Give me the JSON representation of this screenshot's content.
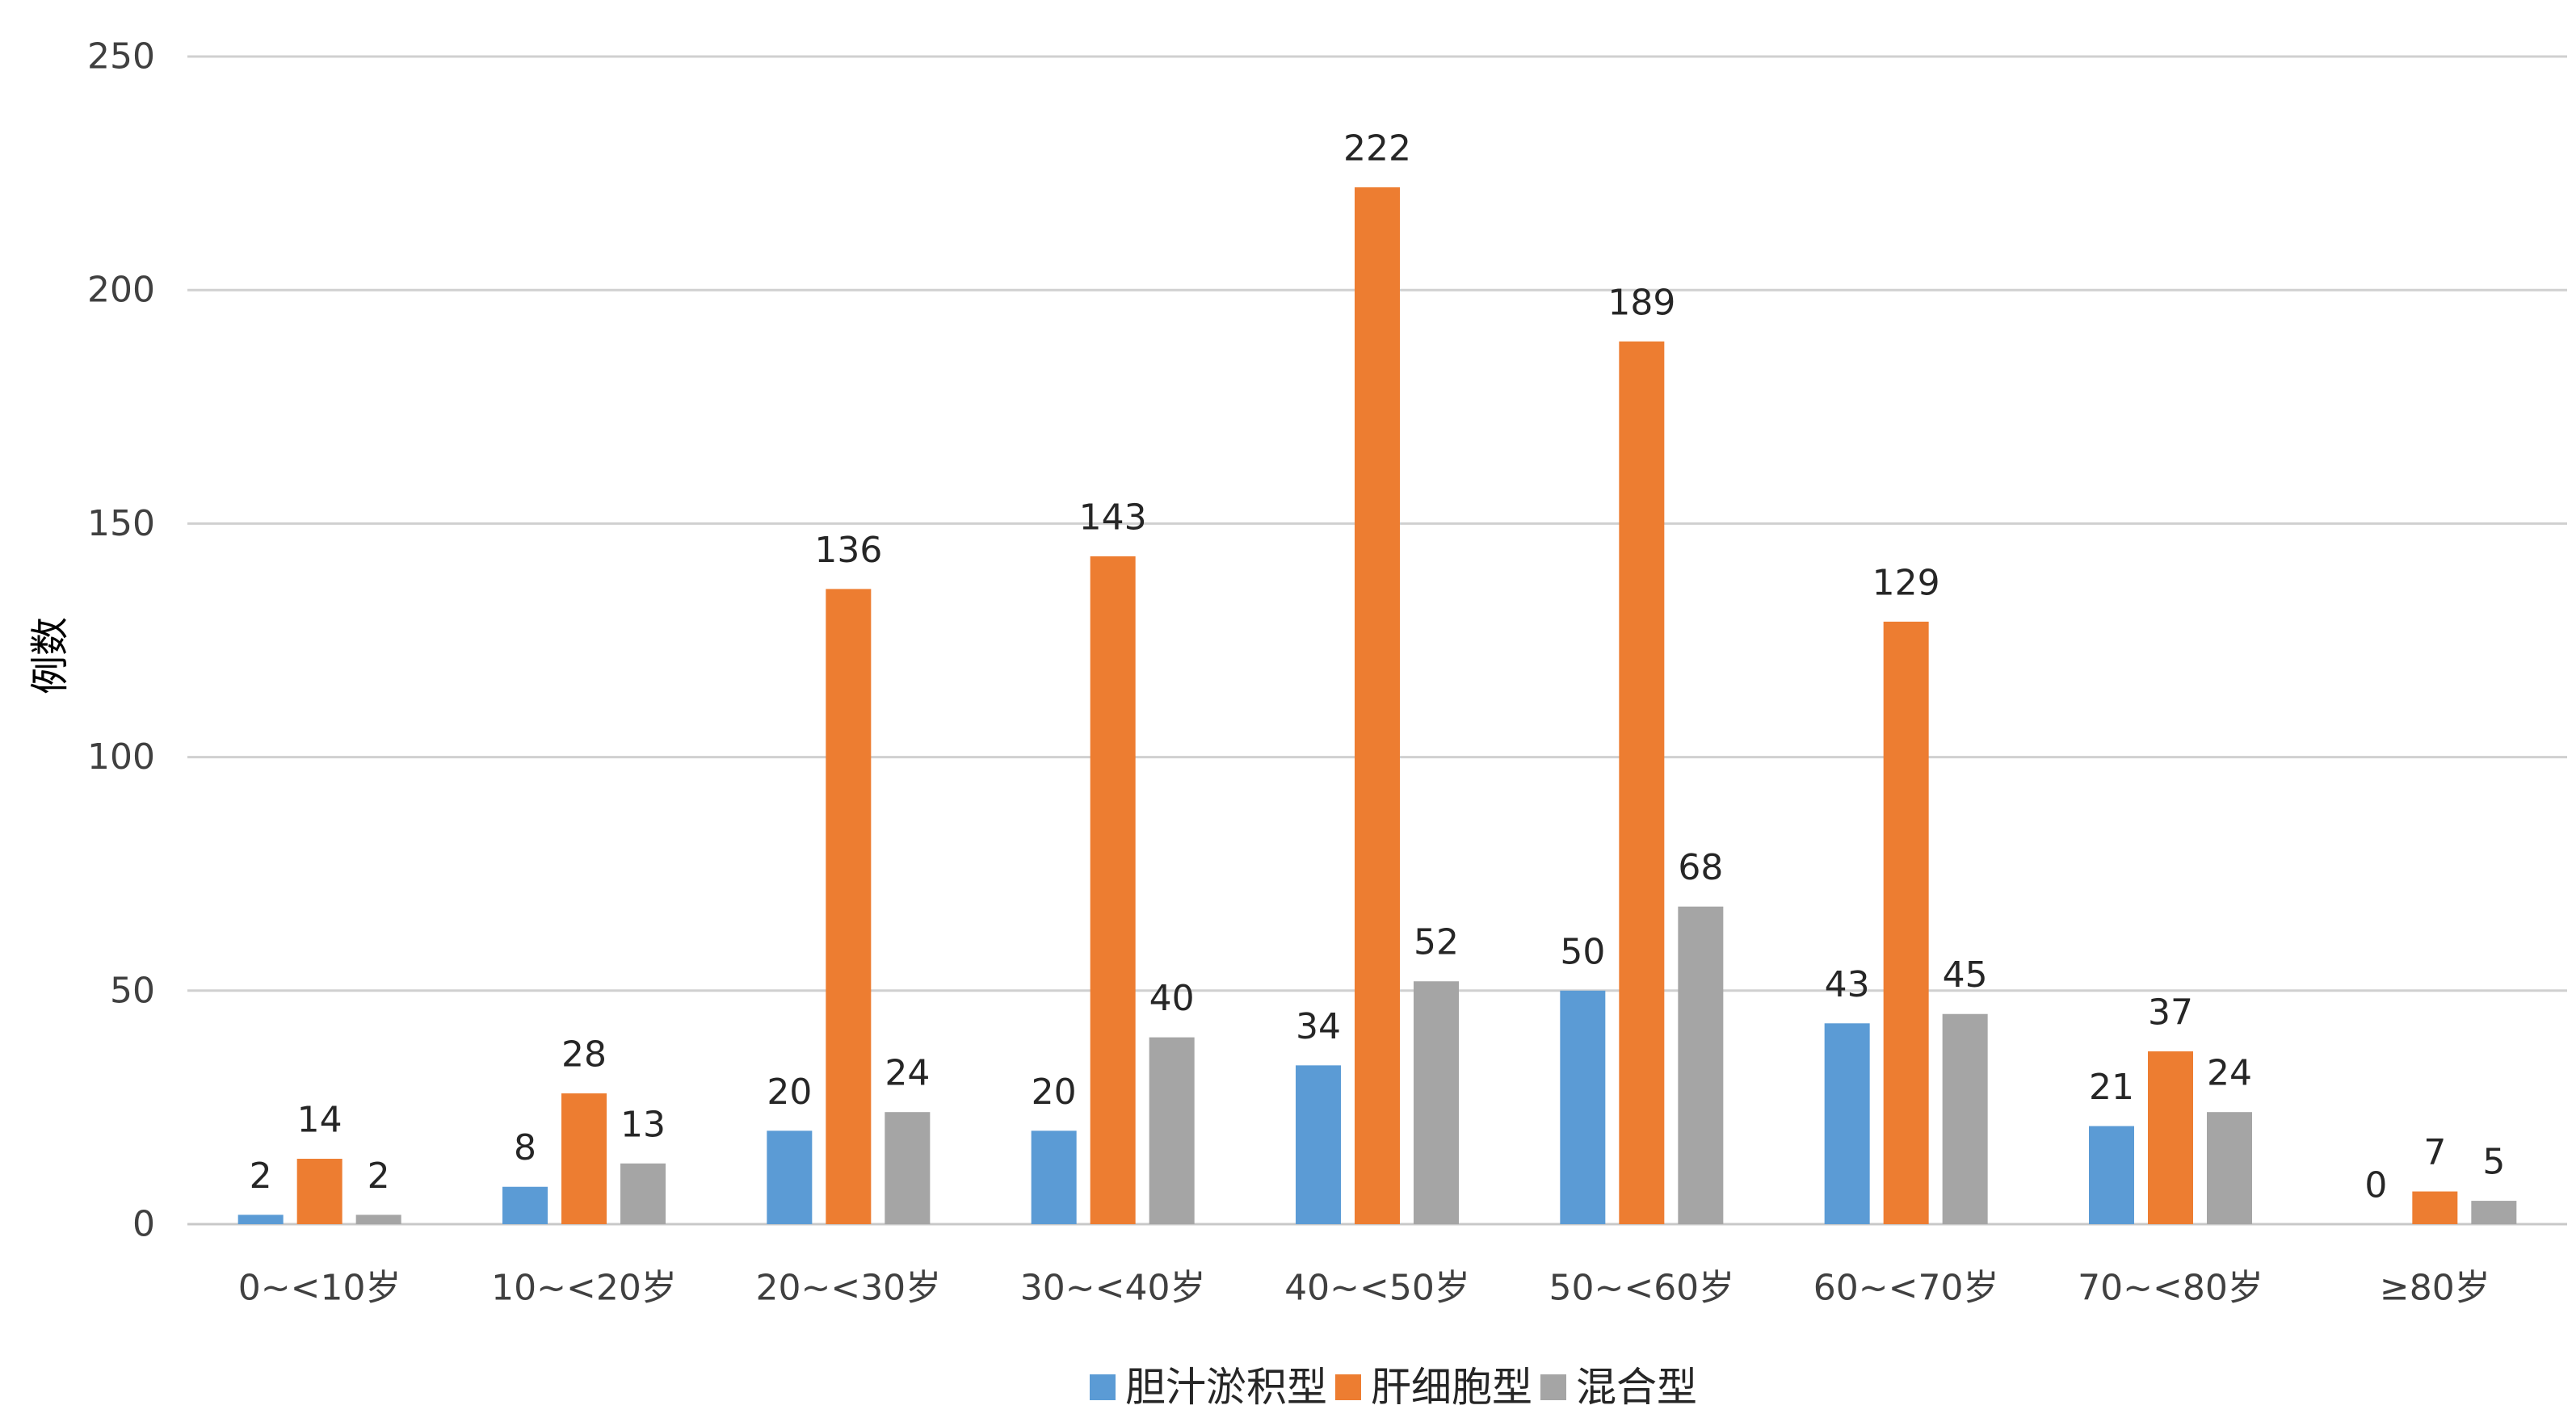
{
  "chart_data": {
    "type": "bar",
    "title": "",
    "xlabel": "",
    "ylabel": "例数",
    "ylim": [
      0,
      250
    ],
    "yticks": [
      0,
      50,
      100,
      150,
      200,
      250
    ],
    "grid": true,
    "legend_position": "bottom",
    "categories": [
      "0~<10岁",
      "10~<20岁",
      "20~<30岁",
      "30~<40岁",
      "40~<50岁",
      "50~<60岁",
      "60~<70岁",
      "70~<80岁",
      "≥80岁"
    ],
    "series": [
      {
        "name": "胆汁淤积型",
        "color": "#5B9BD5",
        "values": [
          2,
          8,
          20,
          20,
          34,
          50,
          43,
          21,
          0
        ]
      },
      {
        "name": "肝细胞型",
        "color": "#ED7D31",
        "values": [
          14,
          28,
          136,
          143,
          222,
          189,
          129,
          37,
          7
        ]
      },
      {
        "name": "混合型",
        "color": "#A5A5A5",
        "values": [
          2,
          13,
          24,
          40,
          52,
          68,
          45,
          24,
          5
        ]
      }
    ]
  }
}
